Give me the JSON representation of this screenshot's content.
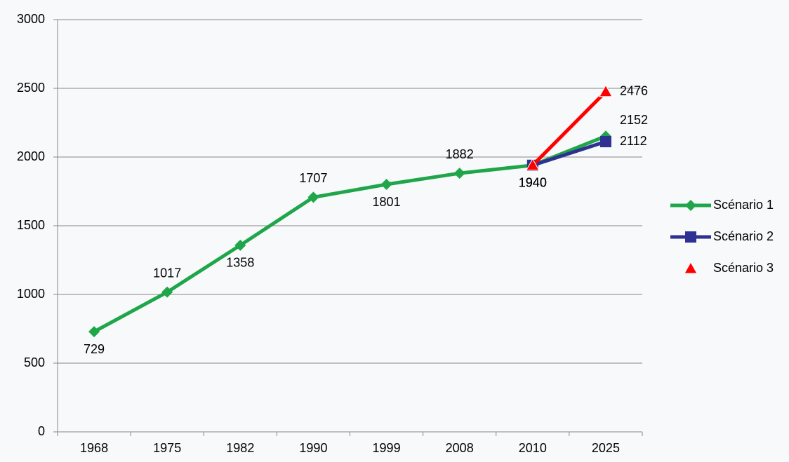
{
  "chart_data": {
    "type": "line",
    "categories": [
      "1968",
      "1975",
      "1982",
      "1990",
      "1999",
      "2008",
      "2010",
      "2025"
    ],
    "series": [
      {
        "name": "Scénario 1",
        "color": "#1fa64a",
        "marker": "diamond",
        "values": [
          729,
          1017,
          1358,
          1707,
          1801,
          1882,
          1940,
          2152
        ]
      },
      {
        "name": "Scénario 2",
        "color": "#2e3192",
        "marker": "square",
        "values": [
          null,
          null,
          null,
          null,
          null,
          null,
          1940,
          2112
        ]
      },
      {
        "name": "Scénario 3",
        "color": "#ff0000",
        "marker": "triangle",
        "values": [
          null,
          null,
          null,
          null,
          null,
          null,
          1940,
          2476
        ]
      }
    ],
    "ylim": [
      0,
      3000
    ],
    "yticks": [
      0,
      500,
      1000,
      1500,
      2000,
      2500,
      3000
    ],
    "grid": true,
    "legend": "right"
  }
}
